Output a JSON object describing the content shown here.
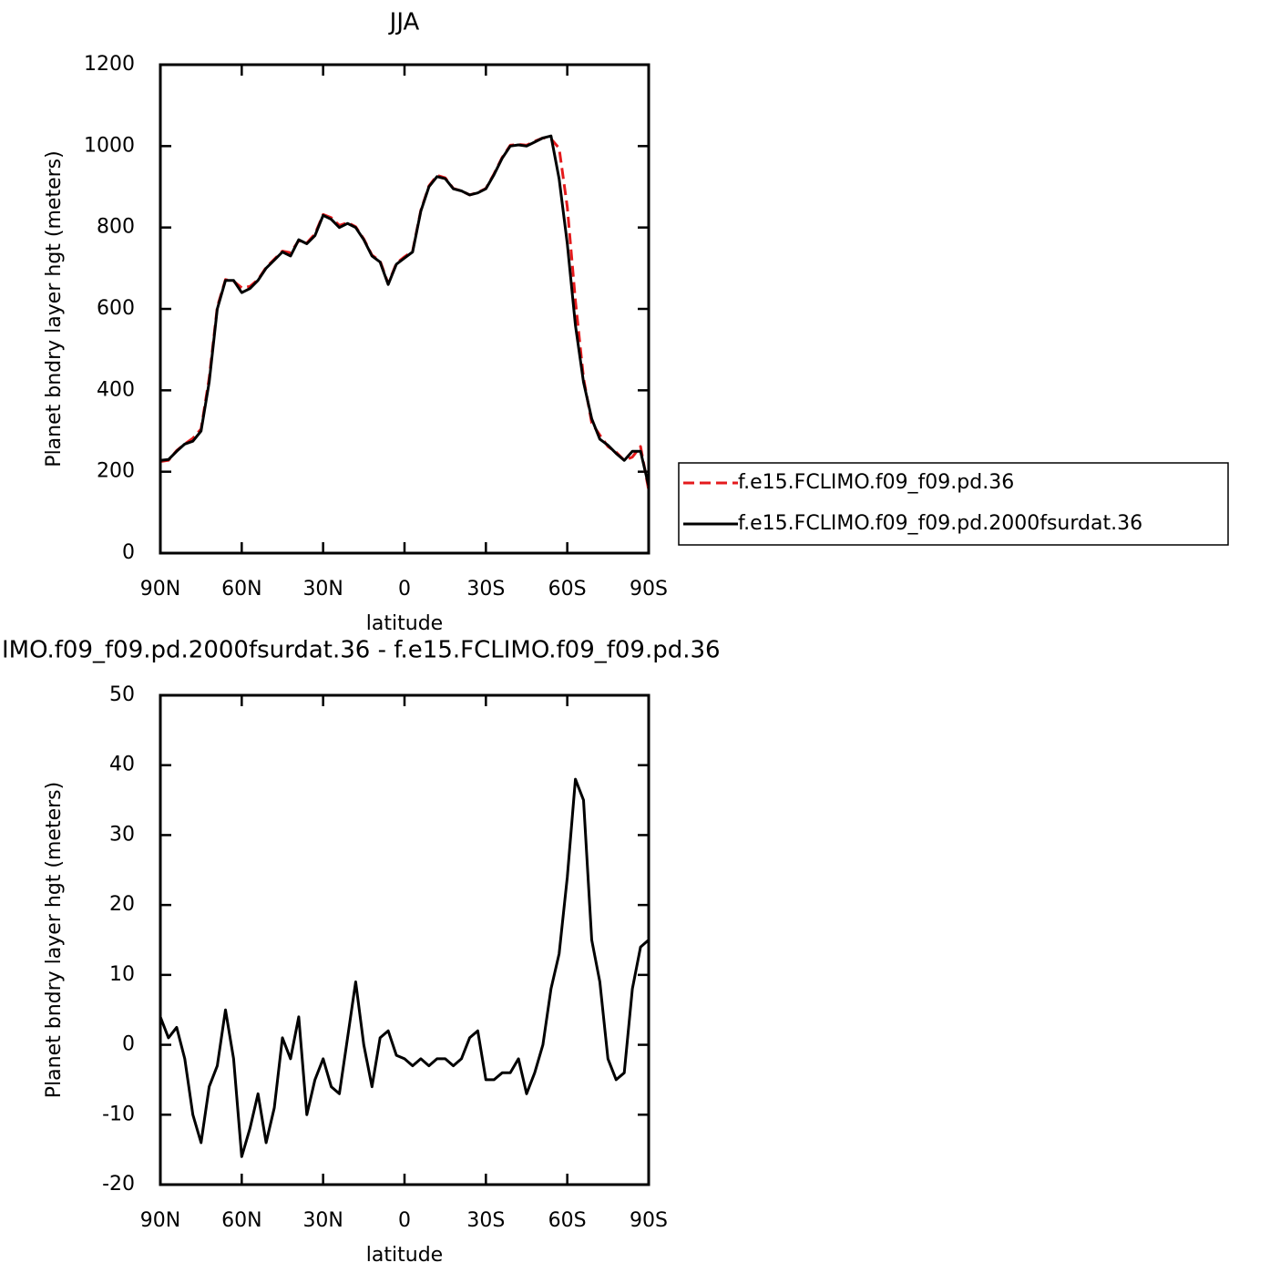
{
  "chart_data": [
    {
      "type": "line",
      "title": "JJA",
      "x_label": "latitude",
      "y_label": "Planet bndry layer hgt (meters)",
      "x": [
        90,
        87,
        84,
        81,
        78,
        75,
        72,
        69,
        66,
        63,
        60,
        57,
        54,
        51,
        48,
        45,
        42,
        39,
        36,
        33,
        30,
        27,
        24,
        21,
        18,
        15,
        12,
        9,
        6,
        3,
        0,
        -3,
        -6,
        -9,
        -12,
        -15,
        -18,
        -21,
        -24,
        -27,
        -30,
        -33,
        -36,
        -39,
        -42,
        -45,
        -48,
        -51,
        -54,
        -57,
        -60,
        -63,
        -66,
        -69,
        -72,
        -75,
        -78,
        -81,
        -84,
        -87,
        -90
      ],
      "series": [
        {
          "name": "f.e15.FCLIMO.f09_f09.pd.36",
          "color": "#e41a1c",
          "linestyle": "dashed",
          "values": [
            225,
            228,
            252,
            268,
            282,
            305,
            430,
            605,
            672,
            668,
            652,
            655,
            672,
            702,
            722,
            742,
            738,
            768,
            762,
            784,
            832,
            824,
            805,
            812,
            802,
            772,
            732,
            718,
            662,
            712,
            728,
            742,
            842,
            902,
            928,
            922,
            896,
            890,
            880,
            886,
            896,
            932,
            972,
            1002,
            1004,
            1002,
            1012,
            1020,
            1018,
            995,
            850,
            620,
            430,
            320,
            290,
            262,
            248,
            228,
            236,
            262,
            155
          ]
        },
        {
          "name": "f.e15.FCLIMO.f09_f09.pd.2000fsurdat.36",
          "color": "#000000",
          "linestyle": "solid",
          "values": [
            228,
            230,
            250,
            268,
            275,
            300,
            420,
            600,
            670,
            670,
            640,
            650,
            670,
            700,
            720,
            740,
            730,
            770,
            760,
            780,
            830,
            820,
            800,
            810,
            800,
            770,
            730,
            715,
            660,
            710,
            725,
            740,
            840,
            900,
            925,
            920,
            895,
            890,
            880,
            885,
            895,
            930,
            970,
            1000,
            1003,
            1000,
            1010,
            1020,
            1025,
            920,
            760,
            560,
            420,
            330,
            280,
            265,
            245,
            228,
            250,
            250,
            165
          ]
        }
      ],
      "xlim": [
        90,
        -90
      ],
      "xticks": [
        {
          "value": 90,
          "label": "90N"
        },
        {
          "value": 60,
          "label": "60N"
        },
        {
          "value": 30,
          "label": "30N"
        },
        0,
        {
          "value": -30,
          "label": "30S"
        },
        {
          "value": -60,
          "label": "60S"
        },
        {
          "value": -90,
          "label": "90S"
        }
      ],
      "ylim": [
        0,
        1200
      ],
      "yticks": [
        0,
        200,
        400,
        600,
        800,
        1000,
        1200
      ],
      "legend": "right"
    },
    {
      "type": "line",
      "title": "IMO.f09_f09.pd.2000fsurdat.36 - f.e15.FCLIMO.f09_f09.pd.36",
      "x_label": "latitude",
      "y_label": "Planet bndry layer hgt (meters)",
      "x": [
        90,
        87,
        84,
        81,
        78,
        75,
        72,
        69,
        66,
        63,
        60,
        57,
        54,
        51,
        48,
        45,
        42,
        39,
        36,
        33,
        30,
        27,
        24,
        21,
        18,
        15,
        12,
        9,
        6,
        3,
        0,
        -3,
        -6,
        -9,
        -12,
        -15,
        -18,
        -21,
        -24,
        -27,
        -30,
        -33,
        -36,
        -39,
        -42,
        -45,
        -48,
        -51,
        -54,
        -57,
        -60,
        -63,
        -66,
        -69,
        -72,
        -75,
        -78,
        -81,
        -84,
        -87,
        -90
      ],
      "color": "#000000",
      "values": [
        4,
        1,
        2.5,
        -2,
        -10,
        -14,
        -6,
        -3,
        5,
        -2,
        -16,
        -12,
        -7,
        -14,
        -9,
        1,
        -2,
        4,
        -10,
        -5,
        -2,
        -6,
        -7,
        1,
        9,
        0,
        -6,
        1,
        2,
        -1.5,
        -2,
        -3,
        -2,
        -3,
        -2,
        -2,
        -3,
        -2,
        1,
        2,
        -5,
        -5,
        -4,
        -4,
        -2,
        -7,
        -4,
        0,
        8,
        13,
        24,
        38,
        35,
        15,
        9,
        -2,
        -5,
        -4,
        8,
        14,
        15
      ],
      "xlim": [
        90,
        -90
      ],
      "xticks": [
        {
          "value": 90,
          "label": "90N"
        },
        {
          "value": 60,
          "label": "60N"
        },
        {
          "value": 30,
          "label": "30N"
        },
        0,
        {
          "value": -30,
          "label": "30S"
        },
        {
          "value": -60,
          "label": "60S"
        },
        {
          "value": -90,
          "label": "90S"
        }
      ],
      "ylim": [
        -20,
        50
      ],
      "yticks": [
        -20,
        -10,
        0,
        10,
        20,
        30,
        40,
        50
      ]
    }
  ]
}
